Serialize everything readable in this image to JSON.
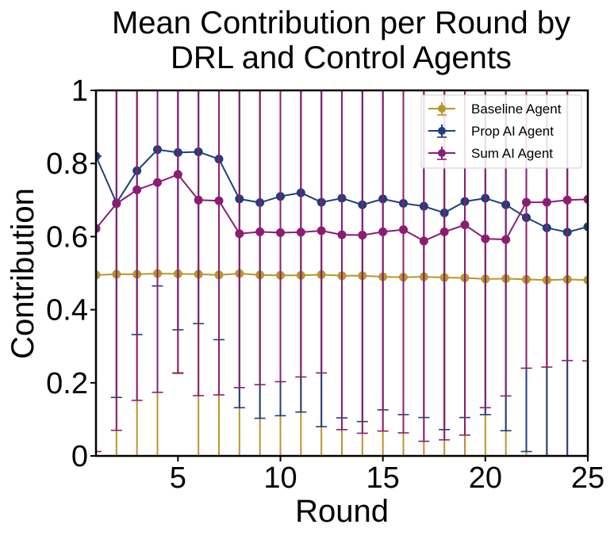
{
  "chart_data": {
    "type": "line",
    "title_lines": [
      "Mean Contribution per Round by",
      "DRL and Control Agents"
    ],
    "xlabel": "Round",
    "ylabel": "Contribution",
    "xlim": [
      1,
      25
    ],
    "ylim": [
      0,
      1
    ],
    "xticks": [
      5,
      10,
      15,
      20,
      25
    ],
    "yticks": [
      0,
      0.2,
      0.4,
      0.6,
      0.8,
      1
    ],
    "ytick_labels": [
      "0",
      "0.2",
      "0.4",
      "0.6",
      "0.8",
      "1"
    ],
    "grid": false,
    "legend_position": "top-right",
    "x": [
      1,
      2,
      3,
      4,
      5,
      6,
      7,
      8,
      9,
      10,
      11,
      12,
      13,
      14,
      15,
      16,
      17,
      18,
      19,
      20,
      21,
      22,
      23,
      24,
      25
    ],
    "series": [
      {
        "name": "Baseline Agent",
        "color": "#b8962e",
        "values": [
          0.495,
          0.497,
          0.497,
          0.499,
          0.498,
          0.497,
          0.495,
          0.499,
          0.495,
          0.494,
          0.494,
          0.496,
          0.493,
          0.493,
          0.49,
          0.489,
          0.49,
          0.488,
          0.487,
          0.484,
          0.485,
          0.483,
          0.481,
          0.483,
          0.481
        ],
        "err_low": [
          0.0,
          0.0,
          0.0,
          0.0,
          0.228,
          0.0,
          0.0,
          0.0,
          0.0,
          0.0,
          0.0,
          0.0,
          0.0,
          0.0,
          0.0,
          0.0,
          0.0,
          0.0,
          0.0,
          0.0,
          0.0,
          0.0,
          0.0,
          0.0,
          0.0
        ],
        "err_high": [
          1.0,
          1.0,
          1.0,
          1.0,
          1.0,
          1.0,
          1.0,
          1.0,
          1.0,
          1.0,
          1.0,
          1.0,
          1.0,
          1.0,
          1.0,
          1.0,
          1.0,
          1.0,
          1.0,
          1.0,
          1.0,
          1.0,
          1.0,
          1.0,
          1.0
        ]
      },
      {
        "name": "Prop AI Agent",
        "color": "#1f3e7a",
        "values": [
          0.82,
          0.692,
          0.78,
          0.838,
          0.83,
          0.832,
          0.812,
          0.703,
          0.693,
          0.71,
          0.72,
          0.694,
          0.705,
          0.687,
          0.703,
          0.691,
          0.683,
          0.665,
          0.696,
          0.705,
          0.687,
          0.652,
          0.624,
          0.612,
          0.627
        ],
        "err_low": [
          0.82,
          0.16,
          0.332,
          0.465,
          0.345,
          0.362,
          0.318,
          0.132,
          0.103,
          0.11,
          0.12,
          0.08,
          0.104,
          0.094,
          0.126,
          0.113,
          0.105,
          0.072,
          0.105,
          0.113,
          0.069,
          0.012,
          0.0,
          0.0,
          0.0
        ],
        "err_high": [
          0.82,
          1.0,
          1.0,
          1.0,
          1.0,
          1.0,
          1.0,
          1.0,
          1.0,
          1.0,
          1.0,
          1.0,
          1.0,
          1.0,
          1.0,
          1.0,
          1.0,
          1.0,
          1.0,
          1.0,
          1.0,
          1.0,
          1.0,
          1.0,
          1.0
        ]
      },
      {
        "name": "Sum AI Agent",
        "color": "#8b1d72",
        "values": [
          0.622,
          0.69,
          0.728,
          0.748,
          0.77,
          0.7,
          0.698,
          0.608,
          0.613,
          0.611,
          0.612,
          0.616,
          0.605,
          0.604,
          0.613,
          0.619,
          0.588,
          0.613,
          0.632,
          0.594,
          0.592,
          0.694,
          0.694,
          0.7,
          0.702
        ],
        "err_low": [
          0.012,
          0.07,
          0.152,
          0.174,
          0.226,
          0.165,
          0.167,
          0.187,
          0.195,
          0.203,
          0.216,
          0.227,
          0.072,
          0.062,
          0.068,
          0.063,
          0.04,
          0.044,
          0.057,
          0.132,
          0.164,
          0.24,
          0.243,
          0.261,
          0.26
        ],
        "err_high": [
          1.0,
          1.0,
          1.0,
          1.0,
          1.0,
          1.0,
          1.0,
          1.0,
          1.0,
          1.0,
          1.0,
          1.0,
          1.0,
          1.0,
          1.0,
          1.0,
          1.0,
          1.0,
          1.0,
          1.0,
          1.0,
          1.0,
          1.0,
          1.0,
          1.0
        ]
      }
    ]
  }
}
